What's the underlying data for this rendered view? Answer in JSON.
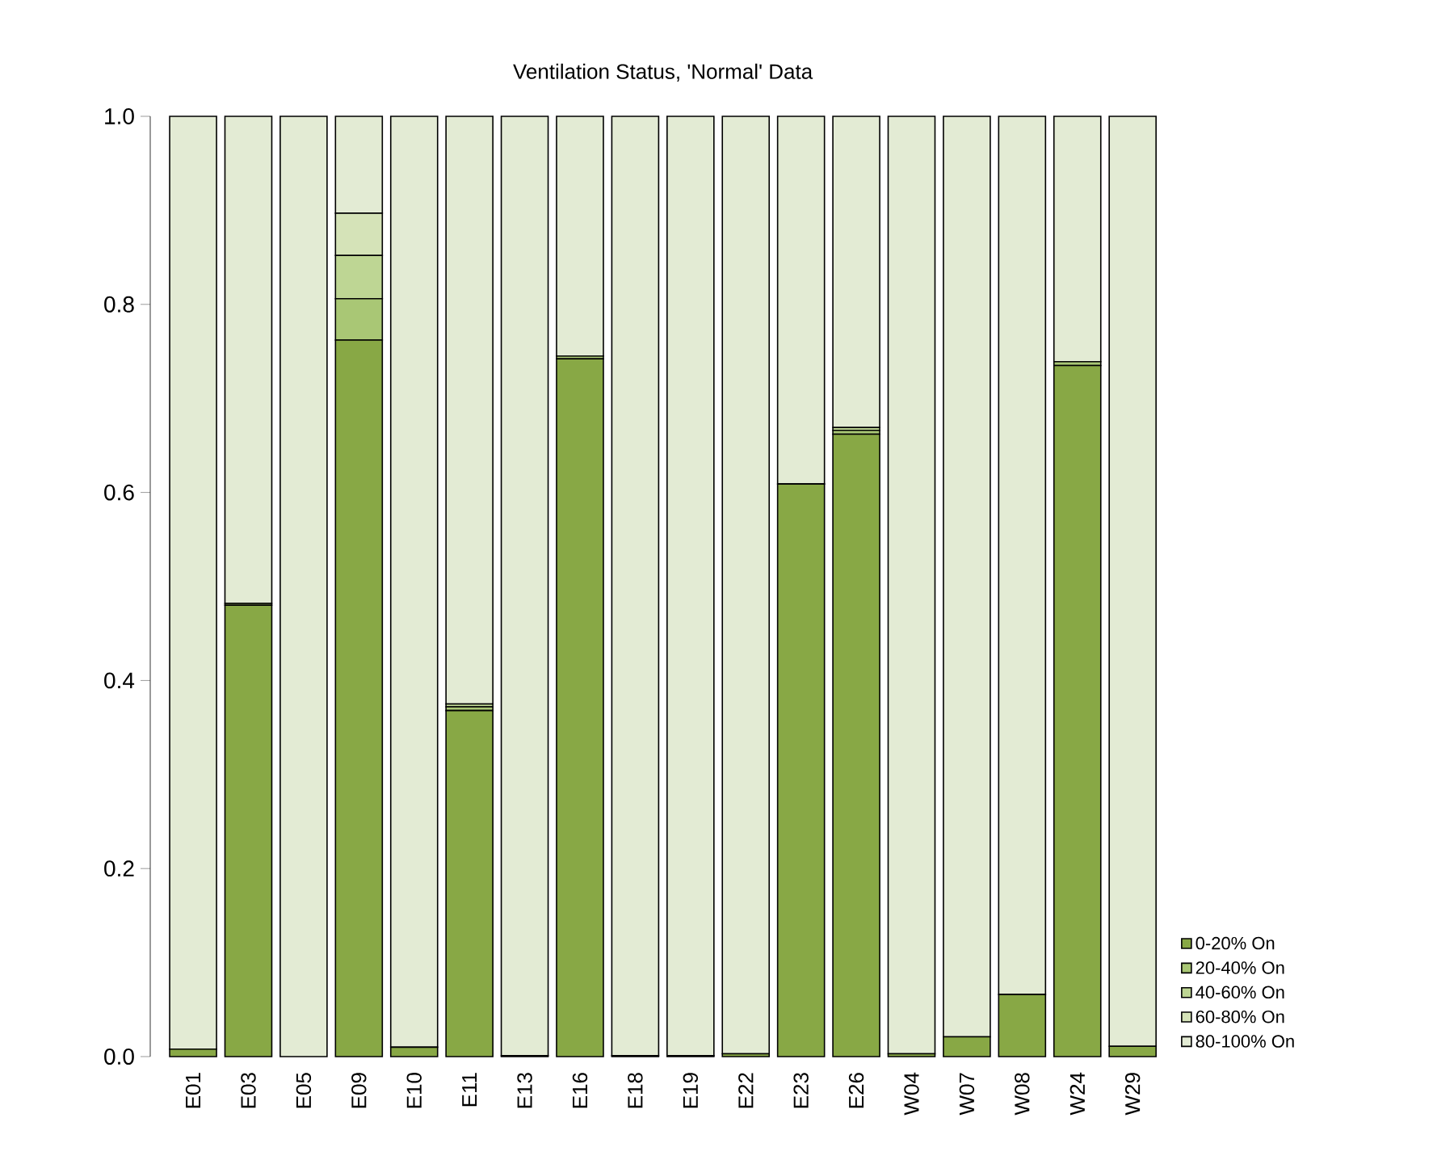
{
  "chart_data": {
    "type": "bar",
    "title": "Ventilation Status, 'Normal' Data",
    "stacked": true,
    "legend": "bottom right",
    "categories": [
      "E01",
      "E03",
      "E05",
      "E09",
      "E10",
      "E11",
      "E13",
      "E16",
      "E18",
      "E19",
      "E22",
      "E23",
      "E26",
      "W04",
      "W07",
      "W08",
      "W24",
      "W29"
    ],
    "series": [
      {
        "name": "0-20% On",
        "color": "#88a845",
        "values": [
          0.008,
          0.48,
          0,
          0.762,
          0.01,
          0.368,
          0.001,
          0.742,
          0.001,
          0.001,
          0.003,
          0.609,
          0.662,
          0.003,
          0.021,
          0.066,
          0.735,
          0.011
        ]
      },
      {
        "name": "20-40% On",
        "color": "#a9c775",
        "values": [
          0,
          0.002,
          0,
          0.044,
          0,
          0.004,
          0,
          0.003,
          0,
          0,
          0,
          0,
          0.004,
          0,
          0,
          null,
          0.004,
          0
        ]
      },
      {
        "name": "40-60% On",
        "color": "#bed694",
        "values": [
          0,
          0,
          0,
          0.046,
          0,
          0.003,
          0,
          null,
          0,
          0,
          0,
          0,
          0.003,
          0,
          0,
          0,
          null,
          0
        ]
      },
      {
        "name": "60-80% On",
        "color": "#d5e3b8",
        "values": [
          0,
          0,
          0,
          0.045,
          0,
          0,
          0,
          0,
          0,
          0,
          0,
          0,
          null,
          0,
          0,
          0,
          0,
          0
        ]
      },
      {
        "name": "80-100% On",
        "color": "#e3ebd4",
        "values": [
          0.992,
          0.518,
          1,
          0.103,
          0.99,
          0.625,
          0.999,
          0.255,
          0.999,
          0.999,
          0.997,
          0.391,
          0.331,
          0.997,
          0.979,
          0.934,
          0.261,
          0.989
        ]
      }
    ],
    "ylim": [
      0,
      1
    ],
    "yticks": [
      {
        "value": 0,
        "label": "0.0"
      },
      {
        "value": 0.2,
        "label": "0.2"
      },
      {
        "value": 0.4,
        "label": "0.4"
      },
      {
        "value": 0.6,
        "label": "0.6"
      },
      {
        "value": 0.8,
        "label": "0.8"
      },
      {
        "value": 1,
        "label": "1.0"
      }
    ]
  }
}
